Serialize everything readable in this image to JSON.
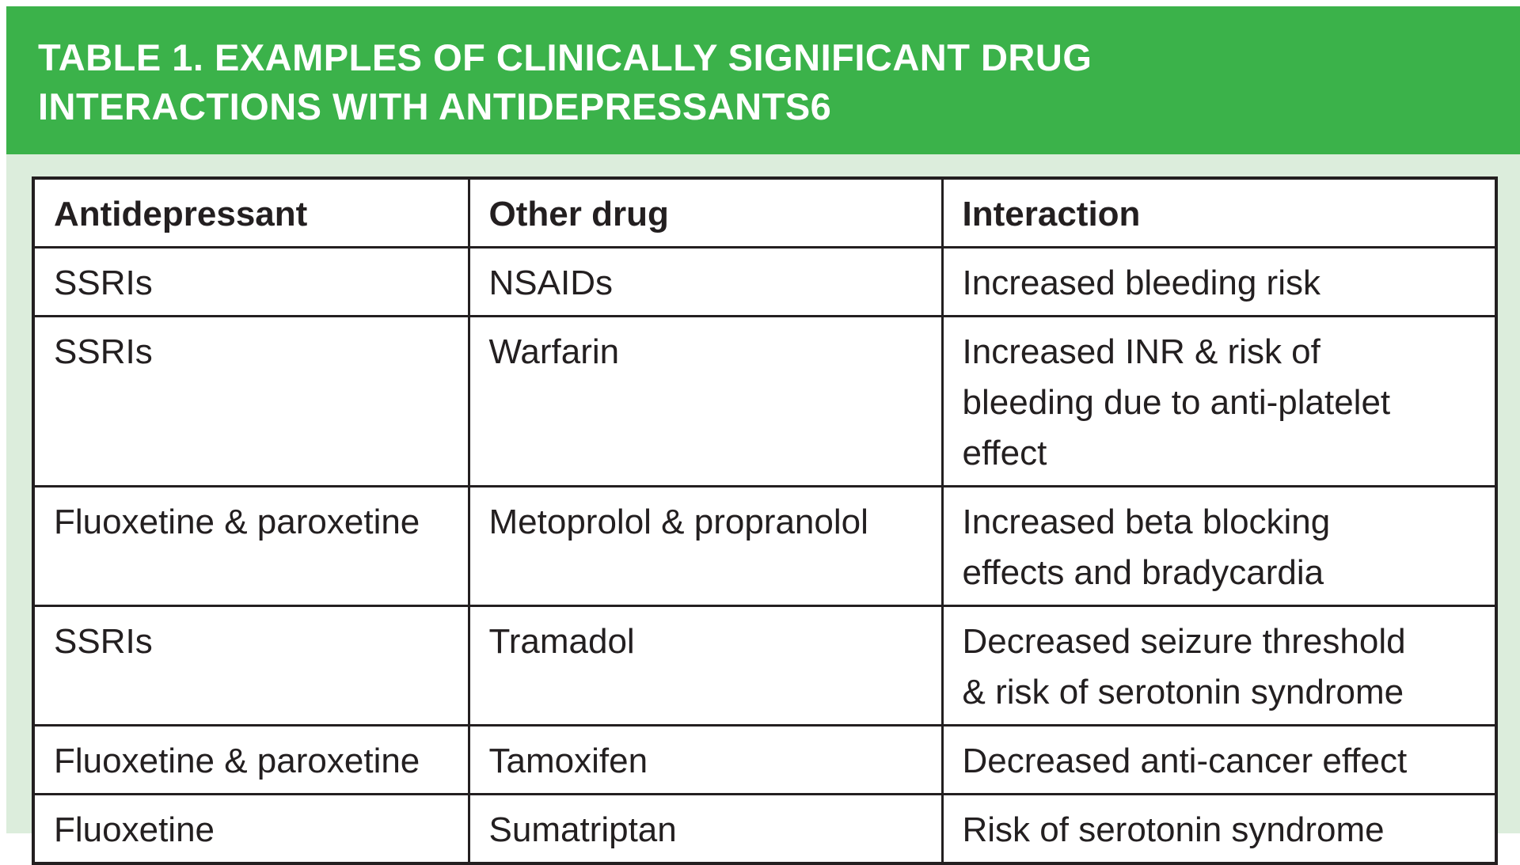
{
  "banner": {
    "title_line1": "TABLE 1. EXAMPLES OF CLINICALLY SIGNIFICANT DRUG",
    "title_line2": "INTERACTIONS WITH ANTIDEPRESSANTS6"
  },
  "table": {
    "columns": [
      "Antidepressant",
      "Other drug",
      "Interaction"
    ],
    "rows": [
      {
        "antidepressant": "SSRIs",
        "other_drug": "NSAIDs",
        "interaction": "Increased bleeding risk"
      },
      {
        "antidepressant": "SSRIs",
        "other_drug": "Warfarin",
        "interaction": "Increased INR & risk of bleeding due to anti-platelet effect"
      },
      {
        "antidepressant": "Fluoxetine & paroxetine",
        "other_drug": "Metoprolol & propranolol",
        "interaction": "Increased beta blocking effects and bradycardia"
      },
      {
        "antidepressant": "SSRIs",
        "other_drug": "Tramadol",
        "interaction": "Decreased seizure threshold & risk of serotonin syndrome"
      },
      {
        "antidepressant": "Fluoxetine & paroxetine",
        "other_drug": "Tamoxifen",
        "interaction": "Decreased anti-cancer effect"
      },
      {
        "antidepressant": "Fluoxetine",
        "other_drug": "Sumatriptan",
        "interaction": "Risk of serotonin syndrome"
      }
    ]
  },
  "colors": {
    "header_green": "#3BB24A",
    "background_green": "#DCEDDC",
    "border_color": "#231F20",
    "text_color": "#231F20",
    "title_text": "#FFFFFF"
  }
}
